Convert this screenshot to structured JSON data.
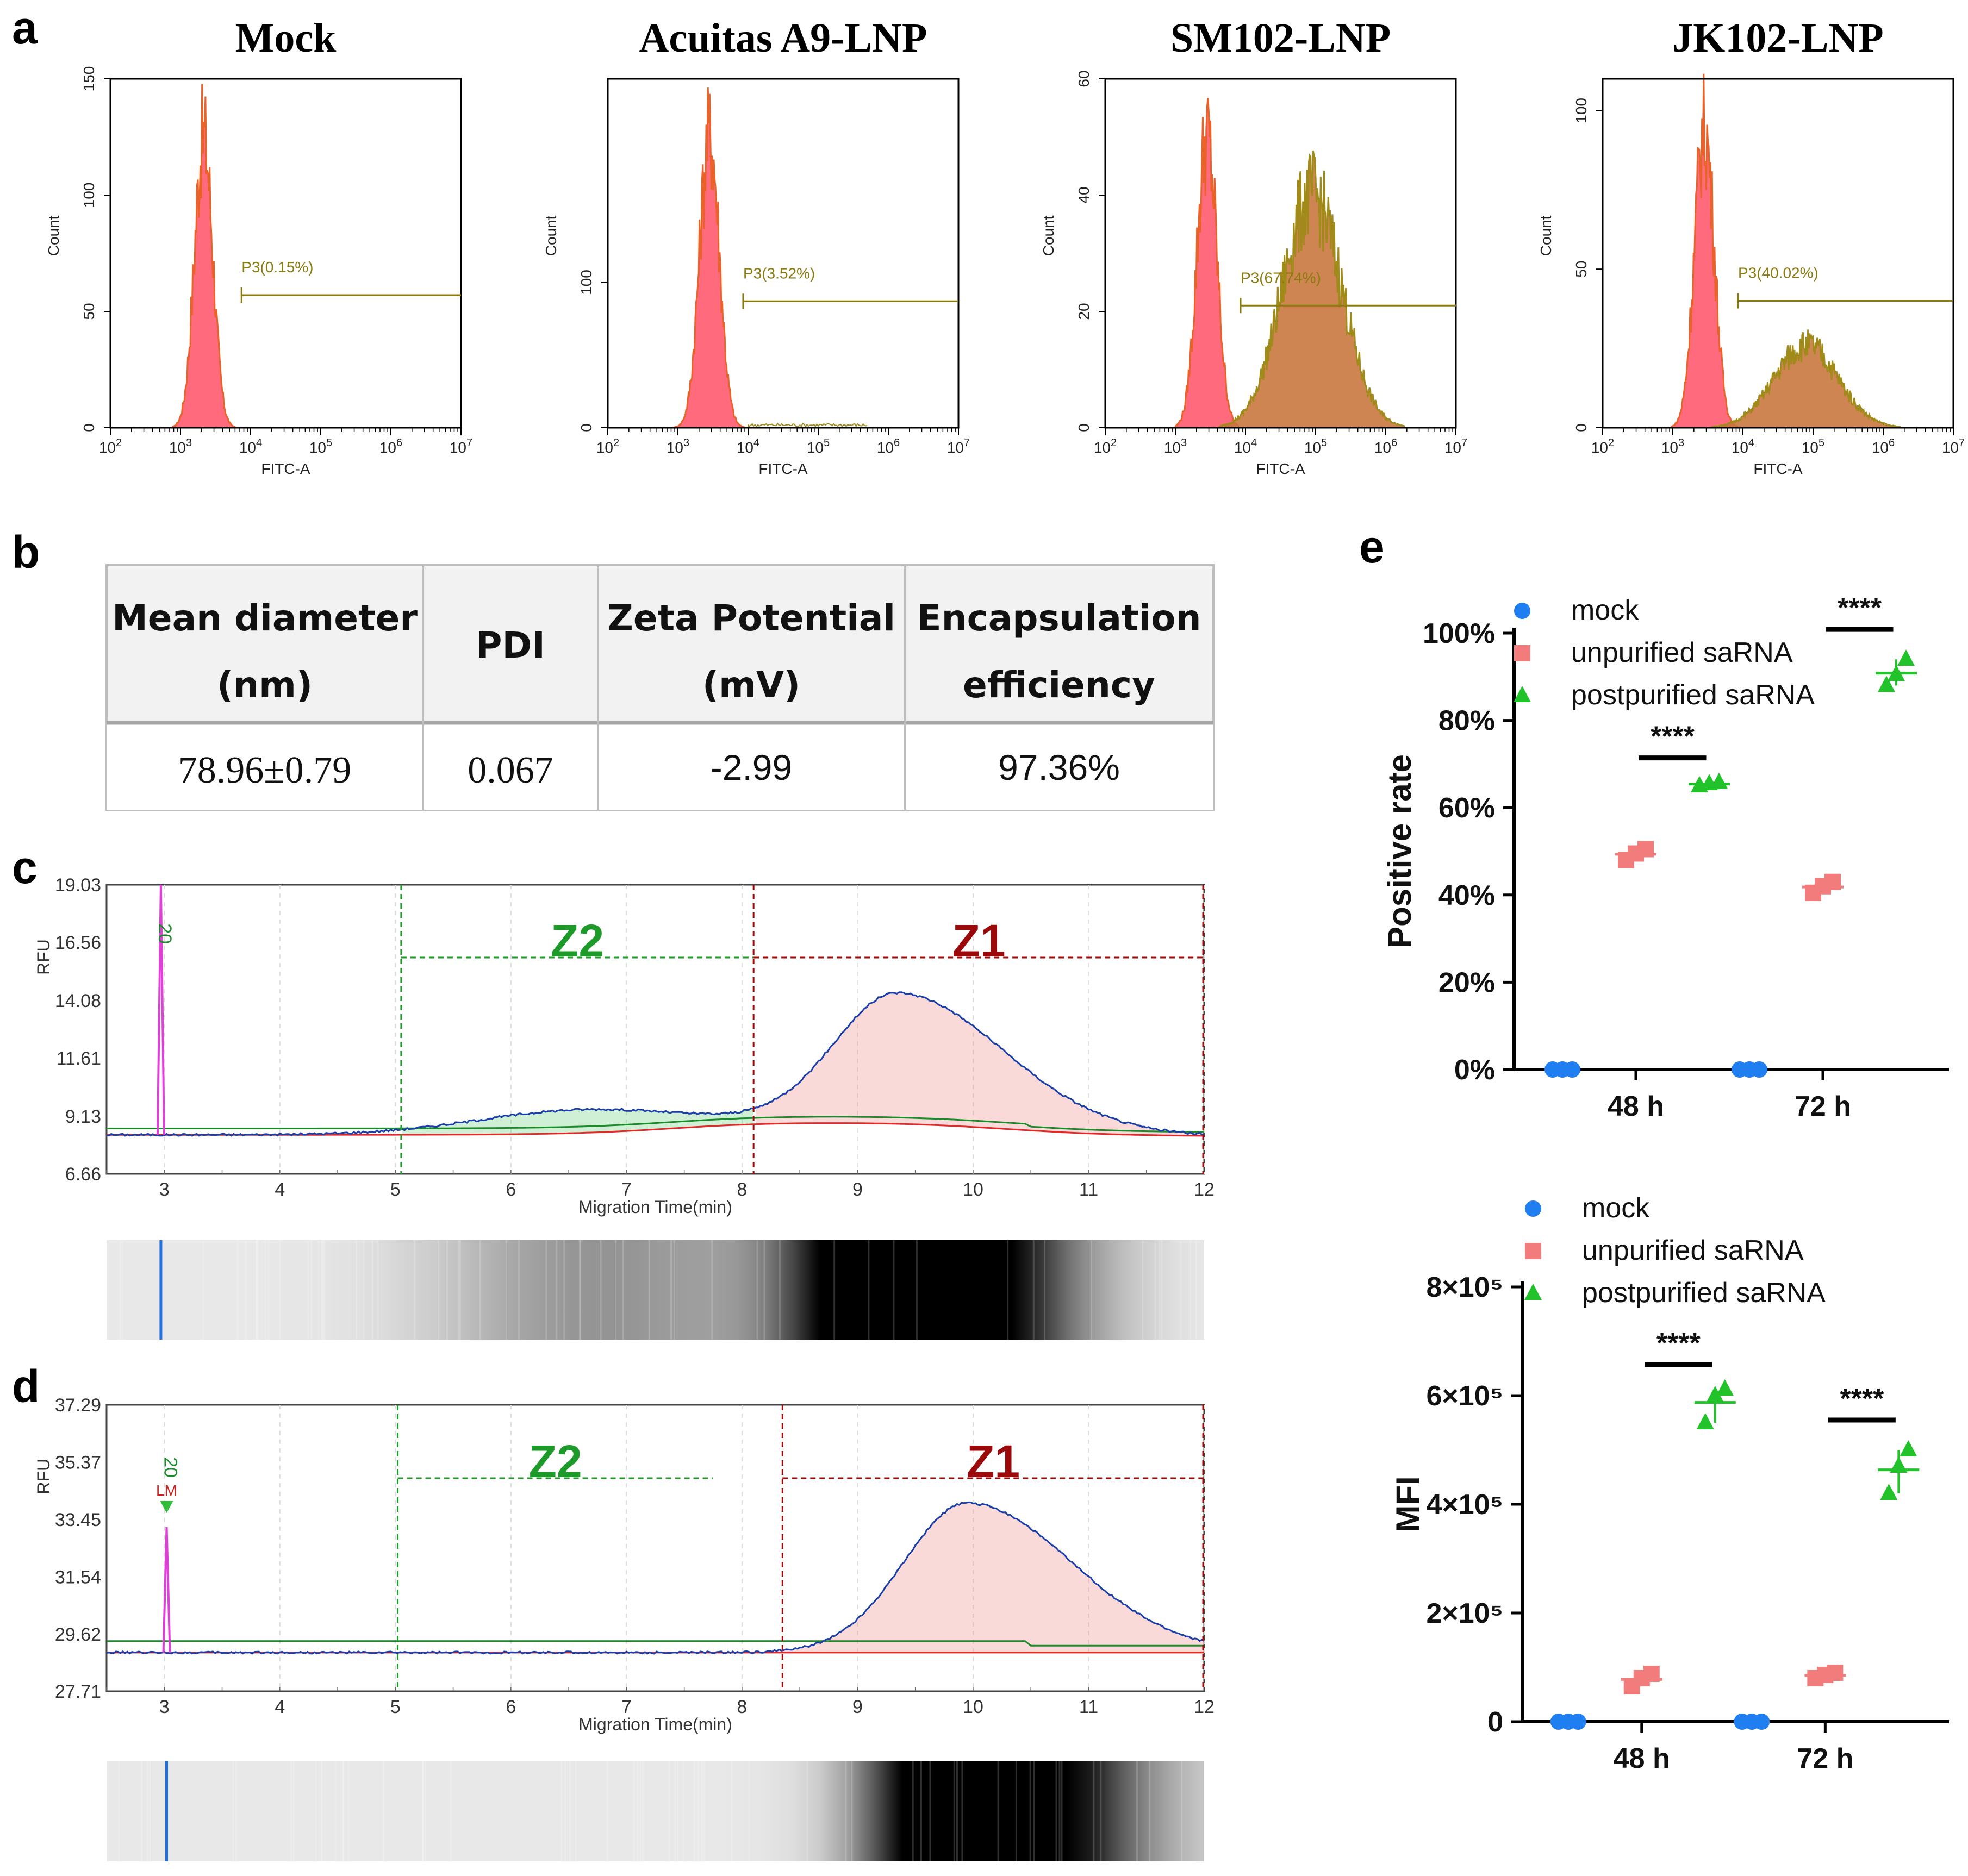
{
  "panel_labels": {
    "a": "a",
    "b": "b",
    "c": "c",
    "d": "d",
    "e": "e"
  },
  "chart_data": [
    {
      "id": "a1",
      "type": "area",
      "title": "Mock",
      "xlabel": "FITC-A",
      "ylabel": "Count",
      "xscale": "log",
      "xlim": [
        100,
        10000000
      ],
      "ylim": [
        0,
        150
      ],
      "xticks": [
        "10^2",
        "10^3",
        "10^4",
        "10^5",
        "10^6",
        "10^7"
      ],
      "yticks": [
        0,
        50,
        100,
        150
      ],
      "gate": {
        "label": "P3(0.15%)",
        "start_log": 3.87,
        "end_log": 7.0,
        "y": 57
      },
      "histograms": [
        {
          "name": "negative",
          "center_log": 3.33,
          "sigma": 0.13,
          "peak": 125
        }
      ]
    },
    {
      "id": "a2",
      "type": "area",
      "title": "Acuitas A9-LNP",
      "xlabel": "FITC-A",
      "ylabel": "Count",
      "xscale": "log",
      "xlim": [
        100,
        10000000
      ],
      "ylim": [
        0,
        240
      ],
      "xticks": [
        "10^2",
        "10^3",
        "10^4",
        "10^5",
        "10^6",
        "10^7"
      ],
      "yticks": [
        0,
        100
      ],
      "gate": {
        "label": "P3(3.52%)",
        "start_log": 3.93,
        "end_log": 7.0,
        "y": 87
      },
      "histograms": [
        {
          "name": "negative",
          "center_log": 3.45,
          "sigma": 0.14,
          "peak": 202
        }
      ]
    },
    {
      "id": "a3",
      "type": "area",
      "title": "SM102-LNP",
      "xlabel": "FITC-A",
      "ylabel": "Count",
      "xscale": "log",
      "xlim": [
        100,
        10000000
      ],
      "ylim": [
        0,
        60
      ],
      "xticks": [
        "10^2",
        "10^3",
        "10^4",
        "10^5",
        "10^6",
        "10^7"
      ],
      "yticks": [
        0,
        20,
        40,
        60
      ],
      "gate": {
        "label": "P3(67.74%)",
        "start_log": 3.93,
        "end_log": 7.0,
        "y": 21
      },
      "histograms": [
        {
          "name": "negative",
          "center_log": 3.45,
          "sigma": 0.14,
          "peak": 50
        },
        {
          "name": "positive",
          "center_log": 4.95,
          "sigma": 0.42,
          "peak": 40
        }
      ]
    },
    {
      "id": "a4",
      "type": "area",
      "title": "JK102-LNP",
      "xlabel": "FITC-A",
      "ylabel": "Count",
      "xscale": "log",
      "xlim": [
        100,
        10000000
      ],
      "ylim": [
        0,
        110
      ],
      "xticks": [
        "10^2",
        "10^3",
        "10^4",
        "10^5",
        "10^6",
        "10^7"
      ],
      "yticks": [
        0,
        50,
        100
      ],
      "gate": {
        "label": "P3(40.02%)",
        "start_log": 3.93,
        "end_log": 7.0,
        "y": 40
      },
      "histograms": [
        {
          "name": "negative",
          "center_log": 3.45,
          "sigma": 0.14,
          "peak": 94
        },
        {
          "name": "positive",
          "center_log": 4.9,
          "sigma": 0.45,
          "peak": 26
        }
      ]
    },
    {
      "id": "c",
      "type": "line",
      "xlabel": "Migration Time(min)",
      "ylabel": "RFU",
      "xlim": [
        2.5,
        12
      ],
      "ylim": [
        6.66,
        19.03
      ],
      "xticks": [
        3,
        4,
        5,
        6,
        7,
        8,
        9,
        10,
        11,
        12
      ],
      "yticks": [
        "6.66",
        "9.13",
        "11.61",
        "14.08",
        "16.56",
        "19.03"
      ],
      "marker_label": "20",
      "marker_x": 2.97,
      "zones": [
        {
          "label": "Z2",
          "start": 5.05,
          "end": 8.1,
          "color": "#1e9a2a"
        },
        {
          "label": "Z1",
          "start": 8.1,
          "end": 12.0,
          "color": "#9a0a0a"
        }
      ],
      "peaks": [
        {
          "name": "Z2 hump",
          "center": 6.6,
          "height": 1.0
        },
        {
          "name": "Z1 peak",
          "center": 9.35,
          "height": 5.6
        }
      ]
    },
    {
      "id": "d",
      "type": "line",
      "xlabel": "Migration Time(min)",
      "ylabel": "RFU",
      "xlim": [
        2.5,
        12
      ],
      "ylim": [
        27.71,
        37.29
      ],
      "xticks": [
        3,
        4,
        5,
        6,
        7,
        8,
        9,
        10,
        11,
        12
      ],
      "yticks": [
        "27.71",
        "29.62",
        "31.54",
        "33.45",
        "35.37",
        "37.29"
      ],
      "marker_label": "20",
      "marker_sub": "LM",
      "marker_x": 3.02,
      "zones": [
        {
          "label": "Z2",
          "start": 5.02,
          "end": 7.75,
          "color": "#1e9a2a"
        },
        {
          "label": "Z1",
          "start": 8.35,
          "end": 12.0,
          "color": "#9a0a0a"
        }
      ],
      "peaks": [
        {
          "name": "Z1 peak",
          "center": 9.95,
          "height": 5.0
        }
      ]
    },
    {
      "id": "e1",
      "type": "scatter",
      "ylabel": "Positive rate",
      "categories": [
        "48 h",
        "72 h"
      ],
      "yticks": [
        "0%",
        "20%",
        "40%",
        "60%",
        "80%",
        "100%"
      ],
      "ylim": [
        0,
        100
      ],
      "series": [
        {
          "name": "mock",
          "color": "#1f7ef0",
          "marker": "circle",
          "values": [
            [
              0,
              0,
              0
            ],
            [
              0,
              0,
              0
            ]
          ]
        },
        {
          "name": "unpurified saRNA",
          "color": "#f27c7c",
          "marker": "square",
          "values": [
            [
              48,
              49.5,
              50.5
            ],
            [
              40.5,
              42,
              43
            ]
          ]
        },
        {
          "name": "postpurified saRNA",
          "color": "#22c22a",
          "marker": "triangle",
          "values": [
            [
              65,
              65.5,
              65.8
            ],
            [
              88,
              90.5,
              94
            ]
          ]
        }
      ],
      "significance": [
        {
          "category": "48 h",
          "label": "****"
        },
        {
          "category": "72 h",
          "label": "****"
        }
      ]
    },
    {
      "id": "e2",
      "type": "scatter",
      "ylabel": "MFI",
      "categories": [
        "48 h",
        "72 h"
      ],
      "yticks": [
        "0",
        "2×10⁵",
        "4×10⁵",
        "6×10⁵",
        "8×10⁵"
      ],
      "ylim": [
        0,
        800000
      ],
      "series": [
        {
          "name": "mock",
          "color": "#1f7ef0",
          "marker": "circle",
          "values": [
            [
              0,
              0,
              0
            ],
            [
              0,
              0,
              0
            ]
          ]
        },
        {
          "name": "unpurified saRNA",
          "color": "#f27c7c",
          "marker": "square",
          "values": [
            [
              65000,
              80000,
              88000
            ],
            [
              80000,
              86000,
              90000
            ]
          ]
        },
        {
          "name": "postpurified saRNA",
          "color": "#22c22a",
          "marker": "triangle",
          "values": [
            [
              550000,
              600000,
              612000
            ],
            [
              420000,
              470000,
              500000
            ]
          ]
        }
      ],
      "significance": [
        {
          "category": "48 h",
          "label": "****"
        },
        {
          "category": "72 h",
          "label": "****"
        }
      ]
    }
  ],
  "table": {
    "headers": [
      [
        "Mean diameter",
        "(nm)"
      ],
      [
        "PDI"
      ],
      [
        "Zeta Potential",
        "(mV)"
      ],
      [
        "Encapsulation",
        "efficiency"
      ]
    ],
    "values": [
      "78.96±0.79",
      "0.067",
      "-2.99",
      "97.36%"
    ]
  },
  "colors": {
    "hist_pink": "#ff6b7d",
    "hist_orange": "#e8622a",
    "hist_olive": "#a08a1a",
    "gate": "#8a7a10",
    "trace_blue": "#1a3fa8",
    "trace_green": "#1b8a2a",
    "trace_red": "#e02a2a",
    "marker_magenta": "#e040d8",
    "lane_marker": "#1f6fe0"
  }
}
